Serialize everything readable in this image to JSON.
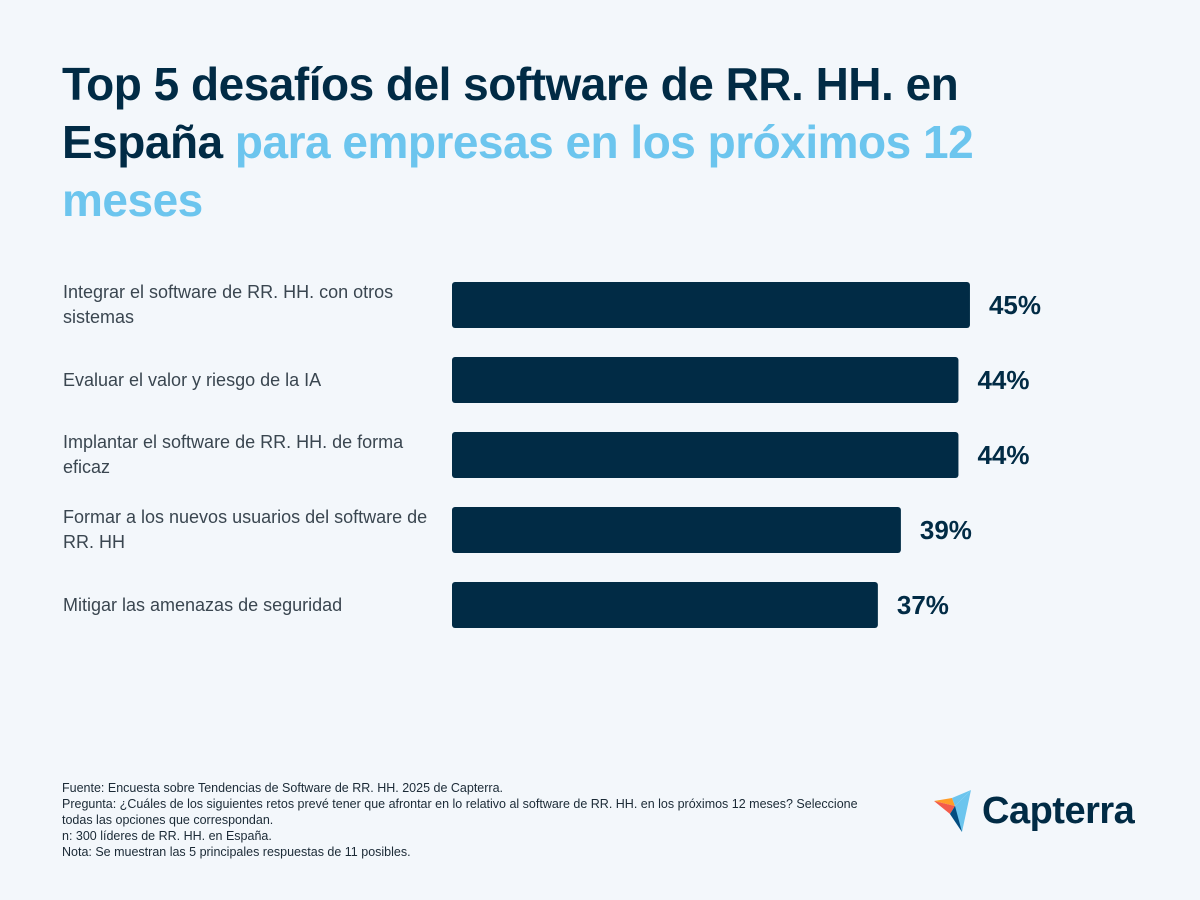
{
  "title": {
    "part1": "Top 5 desafíos del software de RR. HH. en España",
    "part2": "para empresas en los próximos 12 meses"
  },
  "chart_data": {
    "type": "bar",
    "orientation": "horizontal",
    "categories": [
      "Integrar el software de RR. HH. con otros sistemas",
      "Evaluar el valor y riesgo de la IA",
      "Implantar el software de RR. HH. de forma eficaz",
      "Formar a los nuevos usuarios del software de RR. HH",
      "Mitigar las amenazas de seguridad"
    ],
    "values": [
      45,
      44,
      44,
      39,
      37
    ],
    "data_labels": [
      "45%",
      "44%",
      "44%",
      "39%",
      "37%"
    ],
    "unit": "%",
    "grid": false,
    "bar_color": "#012b45"
  },
  "colors": {
    "dark": "#012b45",
    "accent": "#6cc5ee",
    "background": "#f3f7fb"
  },
  "footer": [
    "Fuente: Encuesta sobre Tendencias de Software de RR. HH. 2025 de Capterra.",
    "Pregunta: ¿Cuáles de los siguientes retos prevé tener que afrontar en lo relativo al software de RR. HH. en los próximos 12 meses? Seleccione todas las opciones que correspondan.",
    "n: 300 líderes de RR. HH. en España.",
    "Nota: Se muestran las 5 principales respuestas de 11 posibles."
  ],
  "logo": {
    "text": "Capterra"
  }
}
